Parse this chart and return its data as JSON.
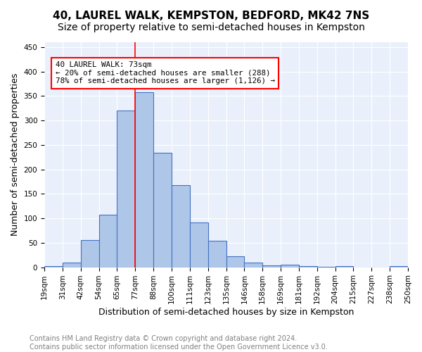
{
  "title1": "40, LAUREL WALK, KEMPSTON, BEDFORD, MK42 7NS",
  "title2": "Size of property relative to semi-detached houses in Kempston",
  "xlabel": "Distribution of semi-detached houses by size in Kempston",
  "ylabel": "Number of semi-detached properties",
  "footnote": "Contains HM Land Registry data © Crown copyright and database right 2024.\nContains public sector information licensed under the Open Government Licence v3.0.",
  "bar_labels": [
    "19sqm",
    "31sqm",
    "42sqm",
    "54sqm",
    "65sqm",
    "77sqm",
    "88sqm",
    "100sqm",
    "111sqm",
    "123sqm",
    "135sqm",
    "146sqm",
    "158sqm",
    "169sqm",
    "181sqm",
    "192sqm",
    "204sqm",
    "215sqm",
    "227sqm",
    "238sqm",
    "250sqm"
  ],
  "bar_values": [
    3,
    9,
    55,
    108,
    321,
    358,
    234,
    168,
    91,
    54,
    23,
    10,
    4,
    5,
    2,
    1,
    2,
    0,
    0,
    3
  ],
  "bar_color": "#aec6e8",
  "bar_edge_color": "#4472c4",
  "annotation_box_text": "40 LAUREL WALK: 73sqm\n← 20% of semi-detached houses are smaller (288)\n78% of semi-detached houses are larger (1,126) →",
  "annotation_box_color": "white",
  "annotation_box_edge_color": "red",
  "annotation_line_color": "red",
  "red_line_x": 5.0,
  "ylim": [
    0,
    460
  ],
  "yticks": [
    0,
    50,
    100,
    150,
    200,
    250,
    300,
    350,
    400,
    450
  ],
  "plot_bg_color": "#eaf0fb",
  "grid_color": "white",
  "title1_fontsize": 11,
  "title2_fontsize": 10,
  "xlabel_fontsize": 9,
  "ylabel_fontsize": 9,
  "tick_fontsize": 7.5,
  "footnote_fontsize": 7
}
